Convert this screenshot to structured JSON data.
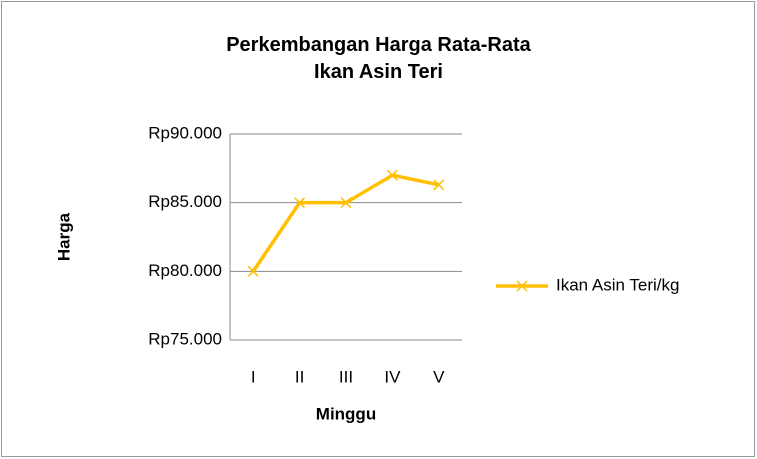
{
  "chart_data": {
    "type": "line",
    "title": "Perkembangan Harga Rata-Rata\nIkan Asin Teri",
    "xlabel": "Minggu",
    "ylabel": "Harga",
    "categories": [
      "I",
      "II",
      "III",
      "IV",
      "V"
    ],
    "series": [
      {
        "name": "Ikan Asin Teri/kg",
        "color": "#FFC000",
        "values": [
          80000,
          85000,
          85000,
          87000,
          86300
        ]
      }
    ],
    "ylim": [
      75000,
      90000
    ],
    "yticks": [
      {
        "value": 75000,
        "label": "Rp75.000"
      },
      {
        "value": 80000,
        "label": "Rp80.000"
      },
      {
        "value": 85000,
        "label": "Rp85.000"
      },
      {
        "value": 90000,
        "label": "Rp90.000"
      }
    ],
    "grid": true,
    "legend": "right"
  }
}
